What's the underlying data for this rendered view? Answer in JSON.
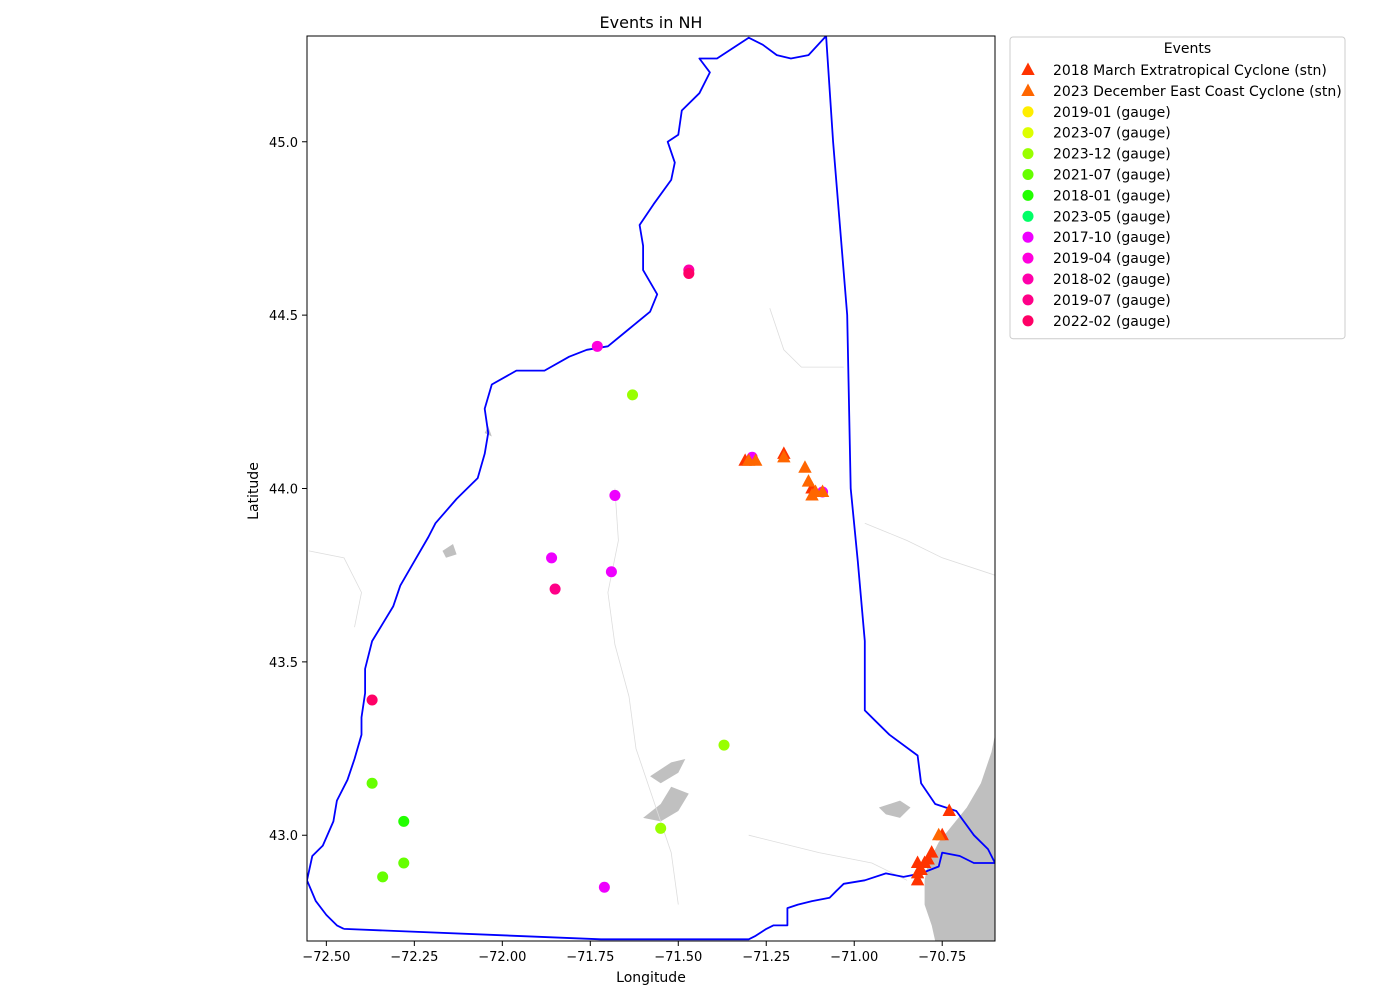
{
  "chart_data": {
    "type": "scatter",
    "title": "Events in NH",
    "xlabel": "Longitude",
    "ylabel": "Latitude",
    "xlim": [
      -72.555,
      -70.6
    ],
    "ylim": [
      42.695,
      45.305
    ],
    "xticks": [
      -72.5,
      -72.25,
      -72.0,
      -71.75,
      -71.5,
      -71.25,
      -71.0,
      -70.75
    ],
    "xtick_labels": [
      "−72.50",
      "−72.25",
      "−72.00",
      "−71.75",
      "−71.50",
      "−71.25",
      "−71.00",
      "−70.75"
    ],
    "yticks": [
      43.0,
      43.5,
      44.0,
      44.5,
      45.0
    ],
    "ytick_labels": [
      "43.0",
      "43.5",
      "44.0",
      "44.5",
      "45.0"
    ],
    "grid": false,
    "legend_title": "Events",
    "legend_position": "outside-top-right",
    "boundary_color": "#0000ff",
    "ocean_color": "#bfbfbf",
    "boundary": [
      [
        -72.45,
        42.73
      ],
      [
        -72.47,
        42.74
      ],
      [
        -72.5,
        42.77
      ],
      [
        -72.53,
        42.81
      ],
      [
        -72.555,
        42.87
      ],
      [
        -72.54,
        42.94
      ],
      [
        -72.51,
        42.97
      ],
      [
        -72.48,
        43.04
      ],
      [
        -72.47,
        43.1
      ],
      [
        -72.44,
        43.16
      ],
      [
        -72.42,
        43.22
      ],
      [
        -72.4,
        43.29
      ],
      [
        -72.4,
        43.34
      ],
      [
        -72.39,
        43.41
      ],
      [
        -72.39,
        43.48
      ],
      [
        -72.37,
        43.56
      ],
      [
        -72.34,
        43.61
      ],
      [
        -72.31,
        43.66
      ],
      [
        -72.29,
        43.72
      ],
      [
        -72.25,
        43.79
      ],
      [
        -72.21,
        43.86
      ],
      [
        -72.19,
        43.9
      ],
      [
        -72.13,
        43.97
      ],
      [
        -72.07,
        44.03
      ],
      [
        -72.05,
        44.1
      ],
      [
        -72.04,
        44.16
      ],
      [
        -72.05,
        44.23
      ],
      [
        -72.03,
        44.3
      ],
      [
        -71.96,
        44.34
      ],
      [
        -71.88,
        44.34
      ],
      [
        -71.81,
        44.38
      ],
      [
        -71.76,
        44.4
      ],
      [
        -71.7,
        44.41
      ],
      [
        -71.64,
        44.46
      ],
      [
        -71.58,
        44.51
      ],
      [
        -71.56,
        44.56
      ],
      [
        -71.6,
        44.63
      ],
      [
        -71.6,
        44.7
      ],
      [
        -71.61,
        44.76
      ],
      [
        -71.57,
        44.82
      ],
      [
        -71.52,
        44.89
      ],
      [
        -71.51,
        44.94
      ],
      [
        -71.53,
        45.0
      ],
      [
        -71.5,
        45.02
      ],
      [
        -71.49,
        45.09
      ],
      [
        -71.44,
        45.14
      ],
      [
        -71.41,
        45.2
      ],
      [
        -71.44,
        45.24
      ],
      [
        -71.39,
        45.24
      ],
      [
        -71.3,
        45.3
      ],
      [
        -71.26,
        45.28
      ],
      [
        -71.22,
        45.25
      ],
      [
        -71.18,
        45.24
      ],
      [
        -71.13,
        45.25
      ],
      [
        -71.08,
        45.305
      ],
      [
        -71.06,
        45.0
      ],
      [
        -71.02,
        44.5
      ],
      [
        -71.01,
        44.0
      ],
      [
        -70.99,
        43.79
      ],
      [
        -70.97,
        43.56
      ],
      [
        -70.97,
        43.36
      ],
      [
        -70.94,
        43.33
      ],
      [
        -70.9,
        43.29
      ],
      [
        -70.82,
        43.23
      ],
      [
        -70.81,
        43.15
      ],
      [
        -70.77,
        43.09
      ],
      [
        -70.71,
        43.07
      ],
      [
        -70.66,
        43.0
      ],
      [
        -70.62,
        42.96
      ],
      [
        -70.6,
        42.92
      ],
      [
        -70.66,
        42.92
      ],
      [
        -70.7,
        42.94
      ],
      [
        -70.75,
        42.95
      ],
      [
        -70.76,
        42.91
      ],
      [
        -70.81,
        42.89
      ],
      [
        -70.86,
        42.88
      ],
      [
        -70.91,
        42.89
      ],
      [
        -70.97,
        42.87
      ],
      [
        -71.03,
        42.86
      ],
      [
        -71.05,
        42.84
      ],
      [
        -71.07,
        42.82
      ],
      [
        -71.12,
        42.81
      ],
      [
        -71.16,
        42.8
      ],
      [
        -71.19,
        42.79
      ],
      [
        -71.19,
        42.74
      ],
      [
        -71.23,
        42.74
      ],
      [
        -71.25,
        42.73
      ],
      [
        -71.28,
        42.71
      ],
      [
        -71.3,
        42.7
      ],
      [
        -71.72,
        42.7
      ],
      [
        -72.45,
        42.73
      ]
    ],
    "ocean": [
      [
        -70.6,
        43.29
      ],
      [
        -70.61,
        43.24
      ],
      [
        -70.64,
        43.15
      ],
      [
        -70.68,
        43.08
      ],
      [
        -70.72,
        43.03
      ],
      [
        -70.76,
        42.98
      ],
      [
        -70.79,
        42.92
      ],
      [
        -70.8,
        42.87
      ],
      [
        -70.8,
        42.8
      ],
      [
        -70.78,
        42.74
      ],
      [
        -70.77,
        42.695
      ],
      [
        -70.6,
        42.695
      ]
    ],
    "rivers": [
      [
        [
          -71.68,
          44.0
        ],
        [
          -71.67,
          43.85
        ],
        [
          -71.7,
          43.7
        ],
        [
          -71.68,
          43.55
        ],
        [
          -71.64,
          43.4
        ],
        [
          -71.62,
          43.25
        ],
        [
          -71.57,
          43.1
        ],
        [
          -71.52,
          42.95
        ],
        [
          -71.5,
          42.8
        ]
      ],
      [
        [
          -71.24,
          44.52
        ],
        [
          -71.2,
          44.4
        ],
        [
          -71.15,
          44.35
        ],
        [
          -71.03,
          44.35
        ]
      ],
      [
        [
          -71.3,
          43.0
        ],
        [
          -71.1,
          42.95
        ],
        [
          -70.95,
          42.92
        ],
        [
          -70.85,
          42.87
        ]
      ],
      [
        [
          -72.55,
          43.82
        ],
        [
          -72.45,
          43.8
        ],
        [
          -72.4,
          43.7
        ],
        [
          -72.42,
          43.6
        ]
      ],
      [
        [
          -70.97,
          43.9
        ],
        [
          -70.85,
          43.85
        ],
        [
          -70.75,
          43.8
        ],
        [
          -70.6,
          43.75
        ]
      ]
    ],
    "lakes": [
      [
        [
          -71.6,
          43.05
        ],
        [
          -71.55,
          43.09
        ],
        [
          -71.52,
          43.14
        ],
        [
          -71.47,
          43.12
        ],
        [
          -71.5,
          43.07
        ],
        [
          -71.55,
          43.04
        ]
      ],
      [
        [
          -71.58,
          43.17
        ],
        [
          -71.52,
          43.21
        ],
        [
          -71.48,
          43.22
        ],
        [
          -71.5,
          43.18
        ],
        [
          -71.55,
          43.15
        ]
      ],
      [
        [
          -70.93,
          43.08
        ],
        [
          -70.87,
          43.1
        ],
        [
          -70.84,
          43.08
        ],
        [
          -70.87,
          43.05
        ],
        [
          -70.91,
          43.06
        ]
      ],
      [
        [
          -72.17,
          43.82
        ],
        [
          -72.14,
          43.84
        ],
        [
          -72.13,
          43.81
        ],
        [
          -72.16,
          43.8
        ]
      ],
      [
        [
          -72.05,
          44.16
        ],
        [
          -72.04,
          44.18
        ],
        [
          -72.03,
          44.15
        ]
      ]
    ],
    "series": [
      {
        "name": "2018 March Extratropical Cyclone (stn)",
        "marker": "triangle",
        "color": "#ff3300",
        "points": [
          [
            -70.82,
            42.87
          ],
          [
            -70.82,
            42.89
          ],
          [
            -70.81,
            42.9
          ],
          [
            -70.8,
            42.92
          ],
          [
            -70.79,
            42.93
          ],
          [
            -70.78,
            42.95
          ],
          [
            -70.75,
            43.0
          ],
          [
            -70.73,
            43.07
          ],
          [
            -70.82,
            42.92
          ],
          [
            -71.31,
            44.08
          ],
          [
            -71.2,
            44.1
          ],
          [
            -71.12,
            44.0
          ]
        ]
      },
      {
        "name": "2023 December East Coast Cyclone (stn)",
        "marker": "triangle",
        "color": "#ff6600",
        "points": [
          [
            -71.3,
            44.08
          ],
          [
            -71.28,
            44.08
          ],
          [
            -71.2,
            44.09
          ],
          [
            -71.14,
            44.06
          ],
          [
            -71.13,
            44.02
          ],
          [
            -71.12,
            43.98
          ],
          [
            -71.11,
            43.99
          ],
          [
            -71.09,
            43.99
          ],
          [
            -70.76,
            43.0
          ]
        ]
      },
      {
        "name": "2019-01 (gauge)",
        "marker": "circle",
        "color": "#ffee00",
        "points": []
      },
      {
        "name": "2023-07 (gauge)",
        "marker": "circle",
        "color": "#ddff00",
        "points": []
      },
      {
        "name": "2023-12 (gauge)",
        "marker": "circle",
        "color": "#99ff00",
        "points": [
          [
            -71.63,
            44.27
          ],
          [
            -71.37,
            43.26
          ],
          [
            -71.55,
            43.02
          ]
        ]
      },
      {
        "name": "2021-07 (gauge)",
        "marker": "circle",
        "color": "#66ff00",
        "points": [
          [
            -72.37,
            43.15
          ],
          [
            -72.28,
            42.92
          ],
          [
            -72.34,
            42.88
          ]
        ]
      },
      {
        "name": "2018-01 (gauge)",
        "marker": "circle",
        "color": "#22ff00",
        "points": [
          [
            -72.28,
            43.04
          ]
        ]
      },
      {
        "name": "2023-05 (gauge)",
        "marker": "circle",
        "color": "#00ff66",
        "points": []
      },
      {
        "name": "2017-10 (gauge)",
        "marker": "circle",
        "color": "#ee00ff",
        "points": [
          [
            -71.68,
            43.98
          ],
          [
            -71.29,
            44.09
          ],
          [
            -71.86,
            43.8
          ],
          [
            -71.69,
            43.76
          ],
          [
            -71.71,
            42.85
          ],
          [
            -71.09,
            43.99
          ]
        ]
      },
      {
        "name": "2019-04 (gauge)",
        "marker": "circle",
        "color": "#ff00dd",
        "points": [
          [
            -71.73,
            44.41
          ]
        ]
      },
      {
        "name": "2018-02 (gauge)",
        "marker": "circle",
        "color": "#ff00aa",
        "points": [
          [
            -71.47,
            44.63
          ]
        ]
      },
      {
        "name": "2019-07 (gauge)",
        "marker": "circle",
        "color": "#ff0088",
        "points": [
          [
            -71.85,
            43.71
          ]
        ]
      },
      {
        "name": "2022-02 (gauge)",
        "marker": "circle",
        "color": "#ff0066",
        "points": [
          [
            -72.37,
            43.39
          ],
          [
            -71.47,
            44.62
          ]
        ]
      }
    ]
  }
}
